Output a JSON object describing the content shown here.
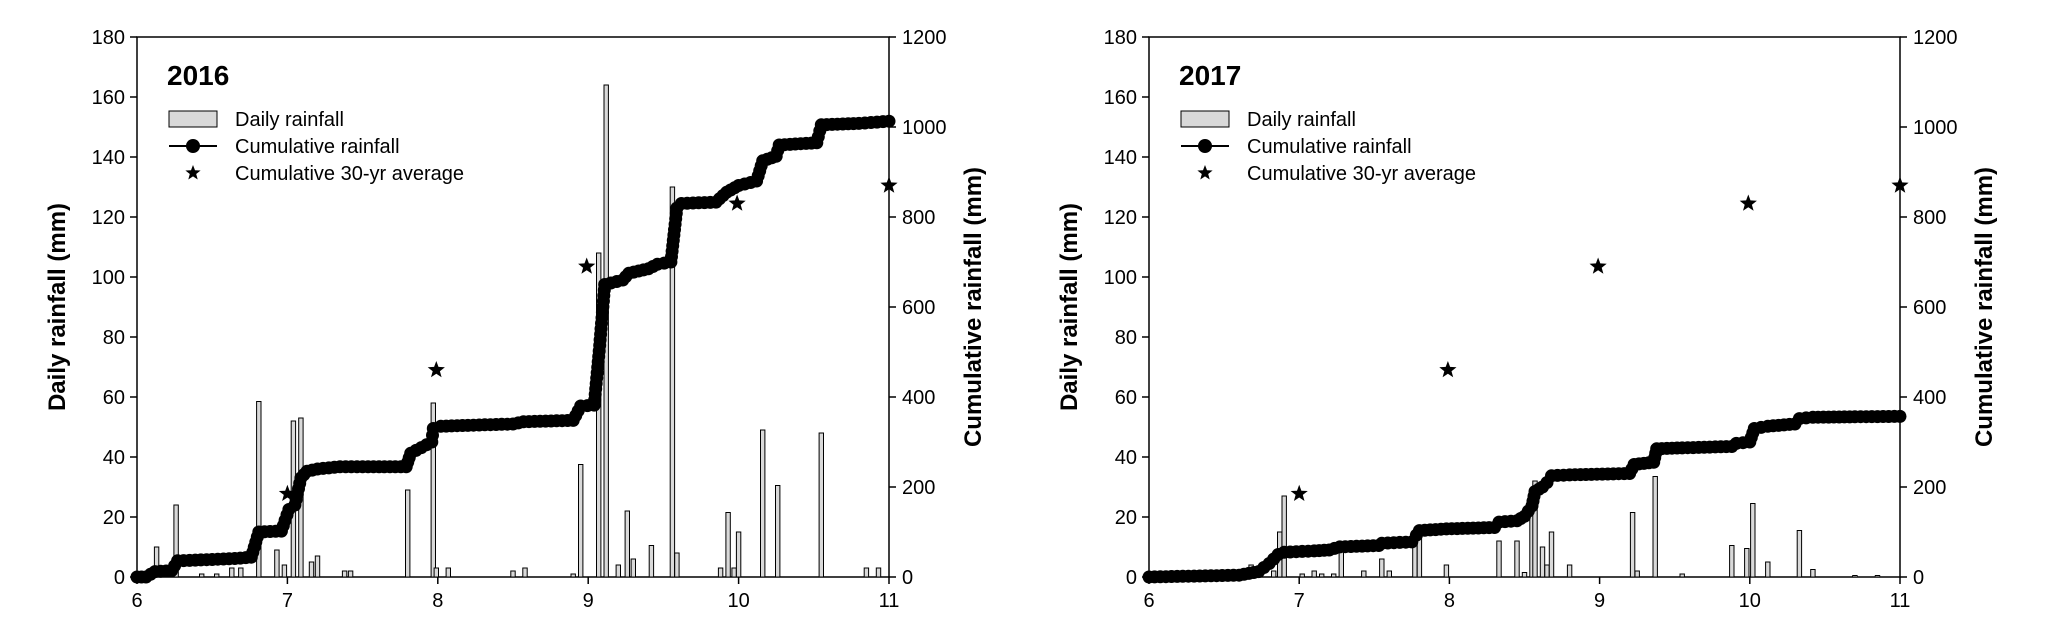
{
  "chart_data": [
    {
      "type": "bar+line+scatter",
      "panel_label": "2016",
      "x_label": "",
      "y_left_label": "Daily rainfall (mm)",
      "y_right_label": "Cumulative rainfall (mm)",
      "x_range": [
        6,
        11
      ],
      "x_ticks": [
        "6",
        "7",
        "8",
        "9",
        "10",
        "11"
      ],
      "y_left_range": [
        0,
        180
      ],
      "y_left_ticks": [
        "0",
        "20",
        "40",
        "60",
        "80",
        "100",
        "120",
        "140",
        "160",
        "180"
      ],
      "y_right_range": [
        0,
        1200
      ],
      "y_right_ticks": [
        "0",
        "200",
        "400",
        "600",
        "800",
        "1000",
        "1200"
      ],
      "legend": {
        "position": "top-left",
        "daily": "Daily rainfall",
        "cumulative": "Cumulative rainfall",
        "average": "Cumulative 30-yr average"
      },
      "daily_rainfall": [
        [
          6.13,
          10
        ],
        [
          6.26,
          24
        ],
        [
          6.43,
          1
        ],
        [
          6.53,
          1
        ],
        [
          6.63,
          3
        ],
        [
          6.69,
          3
        ],
        [
          6.81,
          58.5
        ],
        [
          6.93,
          9
        ],
        [
          6.98,
          4
        ],
        [
          7.04,
          52
        ],
        [
          7.09,
          53
        ],
        [
          7.16,
          5
        ],
        [
          7.2,
          7
        ],
        [
          7.38,
          2
        ],
        [
          7.42,
          2
        ],
        [
          7.8,
          29
        ],
        [
          7.97,
          58
        ],
        [
          7.99,
          3
        ],
        [
          8.07,
          3
        ],
        [
          8.5,
          2
        ],
        [
          8.58,
          3
        ],
        [
          8.9,
          1
        ],
        [
          8.95,
          37.5
        ],
        [
          9.07,
          108
        ],
        [
          9.12,
          164
        ],
        [
          9.2,
          4
        ],
        [
          9.26,
          22
        ],
        [
          9.3,
          6
        ],
        [
          9.42,
          10.5
        ],
        [
          9.56,
          130
        ],
        [
          9.59,
          8
        ],
        [
          9.88,
          3
        ],
        [
          9.93,
          21.5
        ],
        [
          9.97,
          3
        ],
        [
          10.0,
          15
        ],
        [
          10.16,
          49
        ],
        [
          10.26,
          30.5
        ],
        [
          10.55,
          48
        ],
        [
          10.85,
          3
        ],
        [
          10.93,
          3
        ]
      ],
      "cumulative_rainfall": [
        [
          6.0,
          0
        ],
        [
          6.06,
          0
        ],
        [
          6.12,
          12
        ],
        [
          6.23,
          14
        ],
        [
          6.27,
          36
        ],
        [
          6.35,
          37
        ],
        [
          6.5,
          39
        ],
        [
          6.65,
          41
        ],
        [
          6.76,
          44
        ],
        [
          6.81,
          100
        ],
        [
          6.96,
          102
        ],
        [
          7.01,
          150
        ],
        [
          7.05,
          160
        ],
        [
          7.09,
          220
        ],
        [
          7.13,
          235
        ],
        [
          7.2,
          240
        ],
        [
          7.35,
          245
        ],
        [
          7.5,
          245
        ],
        [
          7.79,
          245
        ],
        [
          7.82,
          275
        ],
        [
          7.96,
          300
        ],
        [
          7.97,
          330
        ],
        [
          8.02,
          335
        ],
        [
          8.2,
          337
        ],
        [
          8.5,
          340
        ],
        [
          8.57,
          345
        ],
        [
          8.9,
          348
        ],
        [
          8.95,
          380
        ],
        [
          9.04,
          382
        ],
        [
          9.07,
          490
        ],
        [
          9.11,
          650
        ],
        [
          9.23,
          660
        ],
        [
          9.27,
          675
        ],
        [
          9.4,
          685
        ],
        [
          9.46,
          695
        ],
        [
          9.55,
          700
        ],
        [
          9.59,
          820
        ],
        [
          9.62,
          830
        ],
        [
          9.85,
          833
        ],
        [
          9.92,
          855
        ],
        [
          10.0,
          870
        ],
        [
          10.12,
          880
        ],
        [
          10.16,
          925
        ],
        [
          10.25,
          935
        ],
        [
          10.27,
          960
        ],
        [
          10.52,
          965
        ],
        [
          10.55,
          1005
        ],
        [
          10.8,
          1008
        ],
        [
          11.0,
          1013
        ]
      ],
      "cumulative_30yr_average": [
        [
          7.0,
          185
        ],
        [
          7.99,
          460
        ],
        [
          8.99,
          690
        ],
        [
          9.99,
          830
        ],
        [
          11.0,
          870
        ]
      ]
    },
    {
      "type": "bar+line+scatter",
      "panel_label": "2017",
      "x_label": "",
      "y_left_label": "Daily rainfall (mm)",
      "y_right_label": "Cumulative rainfall (mm)",
      "x_range": [
        6,
        11
      ],
      "x_ticks": [
        "6",
        "7",
        "8",
        "9",
        "10",
        "11"
      ],
      "y_left_range": [
        0,
        180
      ],
      "y_left_ticks": [
        "0",
        "20",
        "40",
        "60",
        "80",
        "100",
        "120",
        "140",
        "160",
        "180"
      ],
      "y_right_range": [
        0,
        1200
      ],
      "y_right_ticks": [
        "0",
        "200",
        "400",
        "600",
        "800",
        "1000",
        "1200"
      ],
      "legend": {
        "position": "top-left",
        "daily": "Daily rainfall",
        "cumulative": "Cumulative rainfall",
        "average": "Cumulative 30-yr average"
      },
      "daily_rainfall": [
        [
          6.68,
          4
        ],
        [
          6.83,
          2
        ],
        [
          6.87,
          15
        ],
        [
          6.9,
          27
        ],
        [
          7.02,
          1
        ],
        [
          7.1,
          2
        ],
        [
          7.15,
          1
        ],
        [
          7.23,
          1
        ],
        [
          7.28,
          9
        ],
        [
          7.43,
          2
        ],
        [
          7.55,
          6
        ],
        [
          7.6,
          2
        ],
        [
          7.77,
          14
        ],
        [
          7.8,
          15
        ],
        [
          7.98,
          4
        ],
        [
          8.33,
          12
        ],
        [
          8.45,
          12
        ],
        [
          8.5,
          1.5
        ],
        [
          8.55,
          22
        ],
        [
          8.57,
          32
        ],
        [
          8.62,
          10
        ],
        [
          8.65,
          4
        ],
        [
          8.68,
          15
        ],
        [
          8.8,
          4
        ],
        [
          9.22,
          21.5
        ],
        [
          9.25,
          2
        ],
        [
          9.37,
          33.5
        ],
        [
          9.55,
          1
        ],
        [
          9.88,
          10.5
        ],
        [
          9.98,
          9.5
        ],
        [
          10.02,
          24.5
        ],
        [
          10.12,
          5
        ],
        [
          10.33,
          15.5
        ],
        [
          10.42,
          2.5
        ],
        [
          10.7,
          0.5
        ],
        [
          10.85,
          0.5
        ]
      ],
      "cumulative_rainfall": [
        [
          6.0,
          0
        ],
        [
          6.3,
          2
        ],
        [
          6.6,
          4
        ],
        [
          6.73,
          12
        ],
        [
          6.8,
          30
        ],
        [
          6.86,
          50
        ],
        [
          6.9,
          55
        ],
        [
          7.1,
          58
        ],
        [
          7.2,
          60
        ],
        [
          7.27,
          67
        ],
        [
          7.53,
          70
        ],
        [
          7.55,
          75
        ],
        [
          7.75,
          78
        ],
        [
          7.78,
          93
        ],
        [
          7.8,
          103
        ],
        [
          7.98,
          107
        ],
        [
          8.3,
          110
        ],
        [
          8.33,
          122
        ],
        [
          8.45,
          125
        ],
        [
          8.5,
          135
        ],
        [
          8.55,
          158
        ],
        [
          8.57,
          190
        ],
        [
          8.62,
          200
        ],
        [
          8.65,
          210
        ],
        [
          8.68,
          225
        ],
        [
          8.8,
          227
        ],
        [
          9.2,
          230
        ],
        [
          9.23,
          250
        ],
        [
          9.36,
          255
        ],
        [
          9.38,
          285
        ],
        [
          9.55,
          287
        ],
        [
          9.88,
          290
        ],
        [
          9.91,
          297
        ],
        [
          10.0,
          300
        ],
        [
          10.03,
          330
        ],
        [
          10.12,
          335
        ],
        [
          10.3,
          340
        ],
        [
          10.33,
          352
        ],
        [
          10.42,
          355
        ],
        [
          10.7,
          356
        ],
        [
          11.0,
          357
        ]
      ],
      "cumulative_30yr_average": [
        [
          7.0,
          185
        ],
        [
          7.99,
          460
        ],
        [
          8.99,
          690
        ],
        [
          9.99,
          830
        ],
        [
          11.0,
          870
        ]
      ]
    }
  ]
}
